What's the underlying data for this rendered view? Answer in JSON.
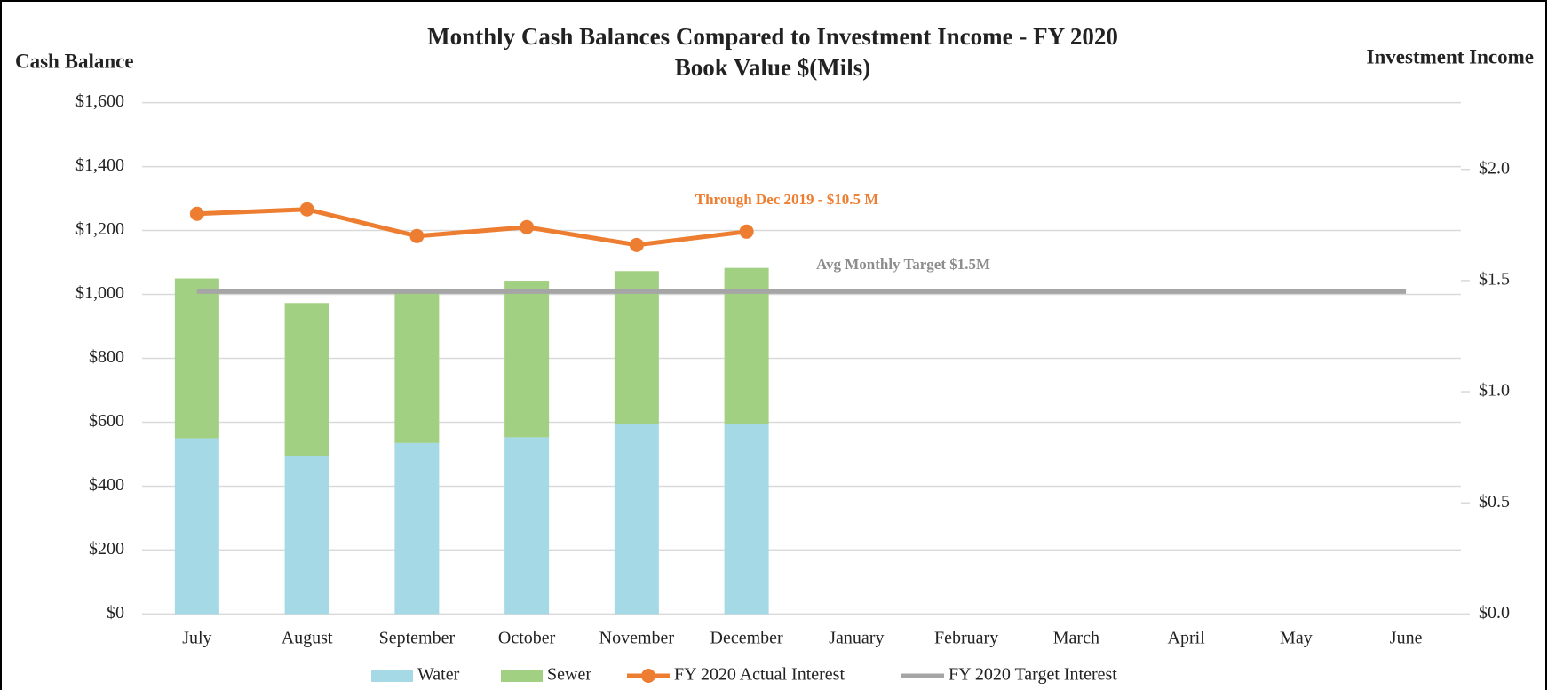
{
  "chart_data": {
    "type": "bar",
    "stacked": true,
    "title": "Monthly Cash Balances Compared to Investment Income - FY 2020",
    "subtitle": "Book Value $(Mils)",
    "y_label": "Cash Balance",
    "y2_label": "Investment Income",
    "annotations": [
      "Through Dec 2019 - $10.5 M",
      "Avg Monthly Target $1.5M"
    ],
    "categories": [
      "July",
      "August",
      "September",
      "October",
      "November",
      "December",
      "January",
      "February",
      "March",
      "April",
      "May",
      "June"
    ],
    "series": [
      {
        "name": "Water",
        "type": "bar",
        "color": "#a5d9e6",
        "values": [
          550,
          495,
          535,
          553,
          593,
          593,
          null,
          null,
          null,
          null,
          null,
          null
        ]
      },
      {
        "name": "Sewer",
        "type": "bar",
        "color": "#a2d083",
        "values": [
          500,
          478,
          475,
          490,
          480,
          490,
          null,
          null,
          null,
          null,
          null,
          null
        ]
      },
      {
        "name": "FY 2020 Actual Interest",
        "type": "line",
        "axis": "y2",
        "markers": true,
        "color": "#ed7d31",
        "values": [
          1.8,
          1.82,
          1.7,
          1.74,
          1.66,
          1.72,
          null,
          null,
          null,
          null,
          null,
          null
        ]
      },
      {
        "name": "FY 2020 Target Interest",
        "type": "line",
        "axis": "y2",
        "markers": false,
        "color": "#a5a5a5",
        "values": [
          1.45,
          1.45,
          1.45,
          1.45,
          1.45,
          1.45,
          1.45,
          1.45,
          1.45,
          1.45,
          1.45,
          1.45
        ]
      }
    ],
    "ylim": [
      0,
      1600
    ],
    "yticks": [
      {
        "value": 0,
        "label": "$0"
      },
      {
        "value": 200,
        "label": "$200"
      },
      {
        "value": 400,
        "label": "$400"
      },
      {
        "value": 600,
        "label": "$600"
      },
      {
        "value": 800,
        "label": "$800"
      },
      {
        "value": 1000,
        "label": "$1,000"
      },
      {
        "value": 1200,
        "label": "$1,200"
      },
      {
        "value": 1400,
        "label": "$1,400"
      },
      {
        "value": 1600,
        "label": "$1,600"
      }
    ],
    "y2lim": [
      0,
      2.3
    ],
    "y2ticks": [
      {
        "value": 0,
        "label": "$0.0"
      },
      {
        "value": 0.5,
        "label": "$0.5"
      },
      {
        "value": 1,
        "label": "$1.0"
      },
      {
        "value": 1.5,
        "label": "$1.5"
      },
      {
        "value": 2,
        "label": "$2.0"
      }
    ],
    "grid": true,
    "legend": "bottom"
  }
}
